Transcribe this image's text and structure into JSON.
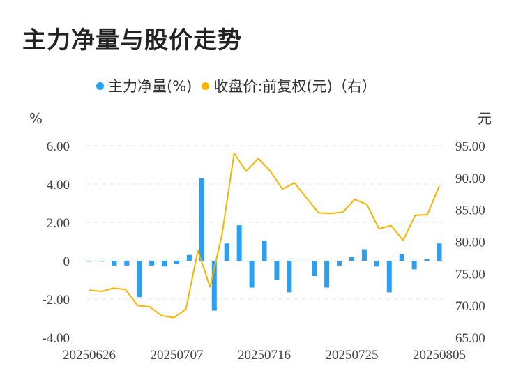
{
  "title": "主力净量与股价走势",
  "chart_data": {
    "type": "bar+line",
    "legend": [
      {
        "label": "主力净量(%)",
        "color": "#2b9ff0"
      },
      {
        "label": "收盘价:前复权(元)（右）",
        "color": "#f5b400"
      }
    ],
    "left_unit": "%",
    "right_unit": "元",
    "left_ylim": [
      -4,
      6
    ],
    "right_ylim": [
      65,
      95
    ],
    "left_ticks": [
      "6.00",
      "4.00",
      "2.00",
      "0",
      "-2.00",
      "-4.00"
    ],
    "right_ticks": [
      "95.00",
      "90.00",
      "85.00",
      "80.00",
      "75.00",
      "70.00",
      "65.00"
    ],
    "x_tick_labels": [
      {
        "label": "20250626",
        "index": 0
      },
      {
        "label": "20250707",
        "index": 7
      },
      {
        "label": "20250716",
        "index": 14
      },
      {
        "label": "20250725",
        "index": 21
      },
      {
        "label": "20250805",
        "index": 28
      }
    ],
    "grid": true,
    "series": [
      {
        "name": "主力净量(%)",
        "axis": "left",
        "type": "bar",
        "color": "#2b9ff0",
        "values": [
          -0.05,
          -0.05,
          -0.25,
          -0.25,
          -1.9,
          -0.25,
          -0.3,
          -0.15,
          0.3,
          4.3,
          -2.6,
          0.9,
          1.85,
          -1.4,
          1.05,
          -1.0,
          -1.65,
          0.0,
          -0.8,
          -1.4,
          -0.25,
          0.2,
          0.6,
          -0.3,
          -1.65,
          0.35,
          -0.45,
          0.1,
          0.9
        ]
      },
      {
        "name": "收盘价:前复权(元)（右）",
        "axis": "right",
        "type": "line",
        "color": "#f5b400",
        "values": [
          72.4,
          72.2,
          72.7,
          72.5,
          70.0,
          69.8,
          68.4,
          68.1,
          69.4,
          78.6,
          72.9,
          81.1,
          93.8,
          91.0,
          93.0,
          91.0,
          88.2,
          89.2,
          86.8,
          84.5,
          84.4,
          84.6,
          86.6,
          85.8,
          82.0,
          82.5,
          80.2,
          84.1,
          84.2,
          88.7
        ]
      }
    ]
  }
}
